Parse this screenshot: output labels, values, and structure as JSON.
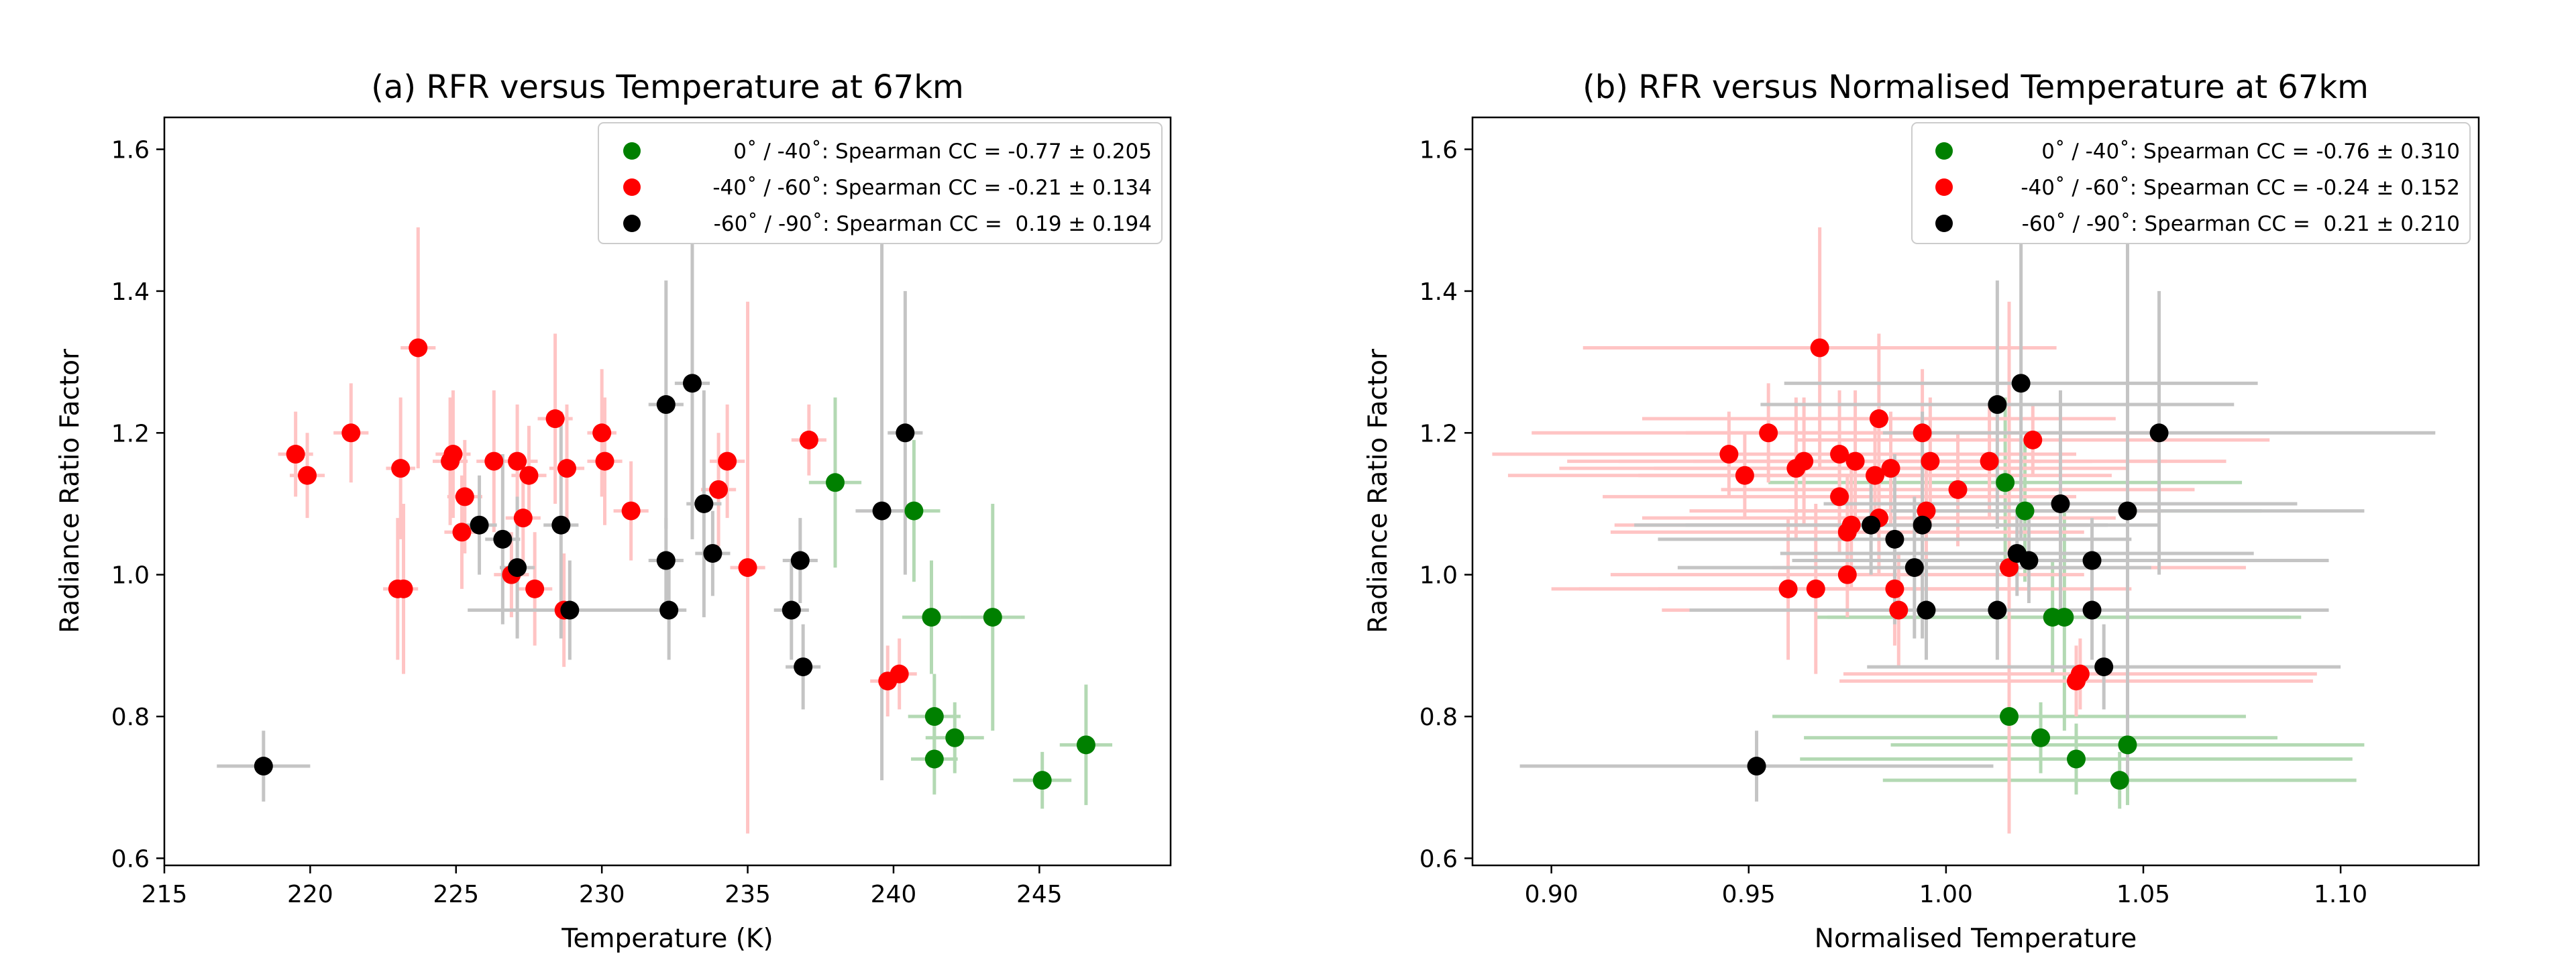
{
  "chart_data": [
    {
      "type": "scatter",
      "title": "(a) RFR versus Temperature at 67km",
      "xlabel": "Temperature (K)",
      "ylabel": "Radiance Ratio Factor",
      "xlim": [
        215,
        249.5
      ],
      "ylim": [
        0.59,
        1.645
      ],
      "xticks": [
        215,
        220,
        225,
        230,
        235,
        240,
        245
      ],
      "xtick_labels": [
        "215",
        "220",
        "225",
        "230",
        "235",
        "240",
        "245"
      ],
      "yticks": [
        0.6,
        0.8,
        1.0,
        1.2,
        1.4,
        1.6
      ],
      "ytick_labels": [
        "0.6",
        "0.8",
        "1.0",
        "1.2",
        "1.4",
        "1.6"
      ],
      "legend_position": "top-right",
      "series": [
        {
          "name": "0˚ / -40˚: Spearman CC = -0.77 ± 0.205",
          "color": "#008000",
          "errorbar_color": "#b3d9b3",
          "points": [
            {
              "x": 238.0,
              "y": 1.13,
              "xerr": 0.9,
              "yerr": 0.12
            },
            {
              "x": 240.7,
              "y": 1.09,
              "xerr": 0.9,
              "yerr": 0.1
            },
            {
              "x": 241.3,
              "y": 0.94,
              "xerr": 1.0,
              "yerr": 0.08
            },
            {
              "x": 243.4,
              "y": 0.94,
              "xerr": 1.1,
              "yerr": 0.16
            },
            {
              "x": 241.4,
              "y": 0.8,
              "xerr": 0.9,
              "yerr": 0.06
            },
            {
              "x": 241.4,
              "y": 0.74,
              "xerr": 0.8,
              "yerr": 0.05
            },
            {
              "x": 242.1,
              "y": 0.77,
              "xerr": 1.0,
              "yerr": 0.05
            },
            {
              "x": 245.1,
              "y": 0.71,
              "xerr": 1.0,
              "yerr": 0.04
            },
            {
              "x": 246.6,
              "y": 0.76,
              "xerr": 0.9,
              "yerr": 0.085
            }
          ]
        },
        {
          "name": "-40˚ / -60˚: Spearman CC = -0.21 ± 0.134",
          "color": "#ff0000",
          "errorbar_color": "#ffc4c4",
          "points": [
            {
              "x": 219.5,
              "y": 1.17,
              "xerr": 0.6,
              "yerr": 0.06
            },
            {
              "x": 219.9,
              "y": 1.14,
              "xerr": 0.6,
              "yerr": 0.06
            },
            {
              "x": 221.4,
              "y": 1.2,
              "xerr": 0.6,
              "yerr": 0.07
            },
            {
              "x": 223.1,
              "y": 1.15,
              "xerr": 0.5,
              "yerr": 0.1
            },
            {
              "x": 223.0,
              "y": 0.98,
              "xerr": 0.5,
              "yerr": 0.1
            },
            {
              "x": 223.2,
              "y": 0.98,
              "xerr": 0.5,
              "yerr": 0.12
            },
            {
              "x": 223.7,
              "y": 1.32,
              "xerr": 0.6,
              "yerr": 0.17
            },
            {
              "x": 224.8,
              "y": 1.16,
              "xerr": 0.6,
              "yerr": 0.09
            },
            {
              "x": 224.9,
              "y": 1.17,
              "xerr": 0.6,
              "yerr": 0.09
            },
            {
              "x": 225.3,
              "y": 1.11,
              "xerr": 0.6,
              "yerr": 0.08
            },
            {
              "x": 225.2,
              "y": 1.06,
              "xerr": 0.6,
              "yerr": 0.08
            },
            {
              "x": 226.3,
              "y": 1.16,
              "xerr": 0.6,
              "yerr": 0.1
            },
            {
              "x": 226.9,
              "y": 1.0,
              "xerr": 0.6,
              "yerr": 0.06
            },
            {
              "x": 227.1,
              "y": 1.16,
              "xerr": 0.7,
              "yerr": 0.08
            },
            {
              "x": 227.3,
              "y": 1.08,
              "xerr": 0.6,
              "yerr": 0.08
            },
            {
              "x": 227.5,
              "y": 1.14,
              "xerr": 0.6,
              "yerr": 0.07
            },
            {
              "x": 227.7,
              "y": 0.98,
              "xerr": 0.6,
              "yerr": 0.08
            },
            {
              "x": 228.4,
              "y": 1.22,
              "xerr": 0.6,
              "yerr": 0.12
            },
            {
              "x": 228.7,
              "y": 0.95,
              "xerr": 0.6,
              "yerr": 0.08
            },
            {
              "x": 228.8,
              "y": 1.15,
              "xerr": 0.6,
              "yerr": 0.09
            },
            {
              "x": 230.0,
              "y": 1.2,
              "xerr": 0.5,
              "yerr": 0.09
            },
            {
              "x": 230.1,
              "y": 1.16,
              "xerr": 0.6,
              "yerr": 0.09
            },
            {
              "x": 231.0,
              "y": 1.09,
              "xerr": 0.6,
              "yerr": 0.07
            },
            {
              "x": 234.0,
              "y": 1.12,
              "xerr": 0.6,
              "yerr": 0.08
            },
            {
              "x": 234.3,
              "y": 1.16,
              "xerr": 0.6,
              "yerr": 0.08
            },
            {
              "x": 235.0,
              "y": 1.01,
              "xerr": 0.6,
              "yerr": 0.375
            },
            {
              "x": 237.1,
              "y": 1.19,
              "xerr": 0.6,
              "yerr": 0.05
            },
            {
              "x": 239.8,
              "y": 0.85,
              "xerr": 0.6,
              "yerr": 0.05
            },
            {
              "x": 240.2,
              "y": 0.86,
              "xerr": 0.6,
              "yerr": 0.05
            }
          ]
        },
        {
          "name": "-60˚ / -90˚: Spearman CC =  0.19 ± 0.194",
          "color": "#000000",
          "errorbar_color": "#c4c4c4",
          "points": [
            {
              "x": 218.4,
              "y": 0.73,
              "xerr": 1.6,
              "yerr": 0.05
            },
            {
              "x": 225.8,
              "y": 1.07,
              "xerr": 0.6,
              "yerr": 0.07
            },
            {
              "x": 226.6,
              "y": 1.05,
              "xerr": 0.6,
              "yerr": 0.12
            },
            {
              "x": 227.1,
              "y": 1.01,
              "xerr": 0.6,
              "yerr": 0.1
            },
            {
              "x": 228.6,
              "y": 1.07,
              "xerr": 0.6,
              "yerr": 0.16
            },
            {
              "x": 228.9,
              "y": 0.95,
              "xerr": 3.5,
              "yerr": 0.07
            },
            {
              "x": 232.2,
              "y": 1.24,
              "xerr": 0.6,
              "yerr": 0.175
            },
            {
              "x": 232.2,
              "y": 1.02,
              "xerr": 0.6,
              "yerr": 0.06
            },
            {
              "x": 232.3,
              "y": 0.95,
              "xerr": 0.6,
              "yerr": 0.07
            },
            {
              "x": 233.1,
              "y": 1.27,
              "xerr": 0.6,
              "yerr": 0.22
            },
            {
              "x": 233.5,
              "y": 1.1,
              "xerr": 0.6,
              "yerr": 0.16
            },
            {
              "x": 233.8,
              "y": 1.03,
              "xerr": 0.6,
              "yerr": 0.06
            },
            {
              "x": 236.5,
              "y": 0.95,
              "xerr": 0.6,
              "yerr": 0.07
            },
            {
              "x": 236.8,
              "y": 1.02,
              "xerr": 0.6,
              "yerr": 0.06
            },
            {
              "x": 236.9,
              "y": 0.87,
              "xerr": 0.6,
              "yerr": 0.06
            },
            {
              "x": 239.6,
              "y": 1.09,
              "xerr": 0.9,
              "yerr": 0.38
            },
            {
              "x": 240.4,
              "y": 1.2,
              "xerr": 0.6,
              "yerr": 0.2
            }
          ]
        }
      ]
    },
    {
      "type": "scatter",
      "title": "(b) RFR versus Normalised Temperature at 67km",
      "xlabel": "Normalised Temperature",
      "ylabel": "Radiance Ratio Factor",
      "xlim": [
        0.88,
        1.135
      ],
      "ylim": [
        0.59,
        1.645
      ],
      "xticks": [
        0.9,
        0.95,
        1.0,
        1.05,
        1.1
      ],
      "xtick_labels": [
        "0.90",
        "0.95",
        "1.00",
        "1.05",
        "1.10"
      ],
      "yticks": [
        0.6,
        0.8,
        1.0,
        1.2,
        1.4,
        1.6
      ],
      "ytick_labels": [
        "0.6",
        "0.8",
        "1.0",
        "1.2",
        "1.4",
        "1.6"
      ],
      "legend_position": "top-right",
      "series": [
        {
          "name": "0˚ / -40˚: Spearman CC = -0.76 ± 0.310",
          "color": "#008000",
          "errorbar_color": "#b3d9b3",
          "points": [
            {
              "x": 1.015,
              "y": 1.13,
              "xerr": 0.06,
              "yerr": 0.12
            },
            {
              "x": 1.02,
              "y": 1.09,
              "xerr": 0.06,
              "yerr": 0.1
            },
            {
              "x": 1.027,
              "y": 0.94,
              "xerr": 0.06,
              "yerr": 0.08
            },
            {
              "x": 1.03,
              "y": 0.94,
              "xerr": 0.06,
              "yerr": 0.16
            },
            {
              "x": 1.016,
              "y": 0.8,
              "xerr": 0.06,
              "yerr": 0.06
            },
            {
              "x": 1.033,
              "y": 0.74,
              "xerr": 0.07,
              "yerr": 0.05
            },
            {
              "x": 1.024,
              "y": 0.77,
              "xerr": 0.06,
              "yerr": 0.05
            },
            {
              "x": 1.044,
              "y": 0.71,
              "xerr": 0.06,
              "yerr": 0.04
            },
            {
              "x": 1.046,
              "y": 0.76,
              "xerr": 0.06,
              "yerr": 0.085
            }
          ]
        },
        {
          "name": "-40˚ / -60˚: Spearman CC = -0.24 ± 0.152",
          "color": "#ff0000",
          "errorbar_color": "#ffc4c4",
          "points": [
            {
              "x": 0.945,
              "y": 1.17,
              "xerr": 0.06,
              "yerr": 0.06
            },
            {
              "x": 0.949,
              "y": 1.14,
              "xerr": 0.06,
              "yerr": 0.06
            },
            {
              "x": 0.955,
              "y": 1.2,
              "xerr": 0.06,
              "yerr": 0.07
            },
            {
              "x": 0.962,
              "y": 1.15,
              "xerr": 0.06,
              "yerr": 0.1
            },
            {
              "x": 0.96,
              "y": 0.98,
              "xerr": 0.06,
              "yerr": 0.1
            },
            {
              "x": 0.967,
              "y": 0.98,
              "xerr": 0.06,
              "yerr": 0.12
            },
            {
              "x": 0.968,
              "y": 1.32,
              "xerr": 0.06,
              "yerr": 0.17
            },
            {
              "x": 0.964,
              "y": 1.16,
              "xerr": 0.06,
              "yerr": 0.09
            },
            {
              "x": 0.973,
              "y": 1.17,
              "xerr": 0.06,
              "yerr": 0.09
            },
            {
              "x": 0.973,
              "y": 1.11,
              "xerr": 0.06,
              "yerr": 0.08
            },
            {
              "x": 0.975,
              "y": 1.06,
              "xerr": 0.06,
              "yerr": 0.08
            },
            {
              "x": 0.977,
              "y": 1.16,
              "xerr": 0.06,
              "yerr": 0.1
            },
            {
              "x": 0.975,
              "y": 1.0,
              "xerr": 0.06,
              "yerr": 0.06
            },
            {
              "x": 0.986,
              "y": 1.15,
              "xerr": 0.06,
              "yerr": 0.08
            },
            {
              "x": 0.983,
              "y": 1.08,
              "xerr": 0.06,
              "yerr": 0.08
            },
            {
              "x": 0.982,
              "y": 1.14,
              "xerr": 0.06,
              "yerr": 0.07
            },
            {
              "x": 0.987,
              "y": 0.98,
              "xerr": 0.06,
              "yerr": 0.08
            },
            {
              "x": 0.983,
              "y": 1.22,
              "xerr": 0.06,
              "yerr": 0.12
            },
            {
              "x": 0.988,
              "y": 0.95,
              "xerr": 0.06,
              "yerr": 0.08
            },
            {
              "x": 0.996,
              "y": 1.16,
              "xerr": 0.06,
              "yerr": 0.09
            },
            {
              "x": 0.994,
              "y": 1.2,
              "xerr": 0.06,
              "yerr": 0.09
            },
            {
              "x": 0.976,
              "y": 1.07,
              "xerr": 0.06,
              "yerr": 0.09
            },
            {
              "x": 0.995,
              "y": 1.09,
              "xerr": 0.06,
              "yerr": 0.07
            },
            {
              "x": 1.003,
              "y": 1.12,
              "xerr": 0.06,
              "yerr": 0.08
            },
            {
              "x": 1.011,
              "y": 1.16,
              "xerr": 0.06,
              "yerr": 0.08
            },
            {
              "x": 1.016,
              "y": 1.01,
              "xerr": 0.06,
              "yerr": 0.375
            },
            {
              "x": 1.022,
              "y": 1.19,
              "xerr": 0.06,
              "yerr": 0.05
            },
            {
              "x": 1.033,
              "y": 0.85,
              "xerr": 0.06,
              "yerr": 0.05
            },
            {
              "x": 1.034,
              "y": 0.86,
              "xerr": 0.06,
              "yerr": 0.05
            }
          ]
        },
        {
          "name": "-60˚ / -90˚: Spearman CC =  0.21 ± 0.210",
          "color": "#000000",
          "errorbar_color": "#c4c4c4",
          "points": [
            {
              "x": 0.952,
              "y": 0.73,
              "xerr": 0.06,
              "yerr": 0.05
            },
            {
              "x": 0.981,
              "y": 1.07,
              "xerr": 0.06,
              "yerr": 0.07
            },
            {
              "x": 0.987,
              "y": 1.05,
              "xerr": 0.06,
              "yerr": 0.12
            },
            {
              "x": 0.992,
              "y": 1.01,
              "xerr": 0.06,
              "yerr": 0.1
            },
            {
              "x": 0.994,
              "y": 1.07,
              "xerr": 0.06,
              "yerr": 0.16
            },
            {
              "x": 0.995,
              "y": 0.95,
              "xerr": 0.06,
              "yerr": 0.07
            },
            {
              "x": 1.013,
              "y": 1.24,
              "xerr": 0.06,
              "yerr": 0.175
            },
            {
              "x": 1.021,
              "y": 1.02,
              "xerr": 0.06,
              "yerr": 0.06
            },
            {
              "x": 1.013,
              "y": 0.95,
              "xerr": 0.06,
              "yerr": 0.07
            },
            {
              "x": 1.019,
              "y": 1.27,
              "xerr": 0.06,
              "yerr": 0.22
            },
            {
              "x": 1.029,
              "y": 1.1,
              "xerr": 0.06,
              "yerr": 0.16
            },
            {
              "x": 1.018,
              "y": 1.03,
              "xerr": 0.06,
              "yerr": 0.06
            },
            {
              "x": 1.037,
              "y": 0.95,
              "xerr": 0.06,
              "yerr": 0.07
            },
            {
              "x": 1.037,
              "y": 1.02,
              "xerr": 0.06,
              "yerr": 0.06
            },
            {
              "x": 1.04,
              "y": 0.87,
              "xerr": 0.06,
              "yerr": 0.06
            },
            {
              "x": 1.046,
              "y": 1.09,
              "xerr": 0.06,
              "yerr": 0.38
            },
            {
              "x": 1.054,
              "y": 1.2,
              "xerr": 0.07,
              "yerr": 0.2
            }
          ]
        }
      ]
    }
  ]
}
